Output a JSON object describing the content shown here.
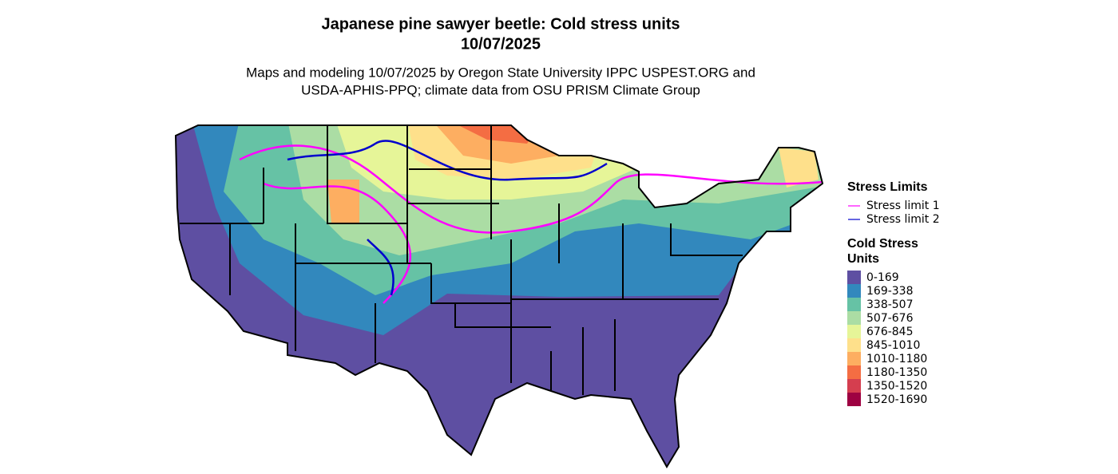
{
  "header": {
    "title": "Japanese pine sawyer beetle: Cold stress units",
    "date": "10/07/2025",
    "subtitle": [
      "Maps and modeling 10/07/2025 by Oregon State University IPPC USPEST.ORG and",
      "USDA-APHIS-PPQ; climate data from OSU PRISM Climate Group"
    ]
  },
  "legend": {
    "stress_limits": {
      "title": "Stress Limits",
      "items": [
        {
          "label": "Stress limit 1",
          "color": "#ff00ff"
        },
        {
          "label": "Stress limit 2",
          "color": "#0000cd"
        }
      ]
    },
    "cold_stress": {
      "title": [
        "Cold Stress",
        "Units"
      ],
      "items": [
        {
          "label": "0-169",
          "color": "#5e4fa2"
        },
        {
          "label": "169-338",
          "color": "#3288bd"
        },
        {
          "label": "338-507",
          "color": "#66c2a5"
        },
        {
          "label": "507-676",
          "color": "#abdda4"
        },
        {
          "label": "676-845",
          "color": "#e6f598"
        },
        {
          "label": "845-1010",
          "color": "#fee08b"
        },
        {
          "label": "1010-1180",
          "color": "#fdae61"
        },
        {
          "label": "1180-1350",
          "color": "#f46d43"
        },
        {
          "label": "1350-1520",
          "color": "#d53e4f"
        },
        {
          "label": "1520-1690",
          "color": "#9e0142"
        }
      ]
    }
  }
}
